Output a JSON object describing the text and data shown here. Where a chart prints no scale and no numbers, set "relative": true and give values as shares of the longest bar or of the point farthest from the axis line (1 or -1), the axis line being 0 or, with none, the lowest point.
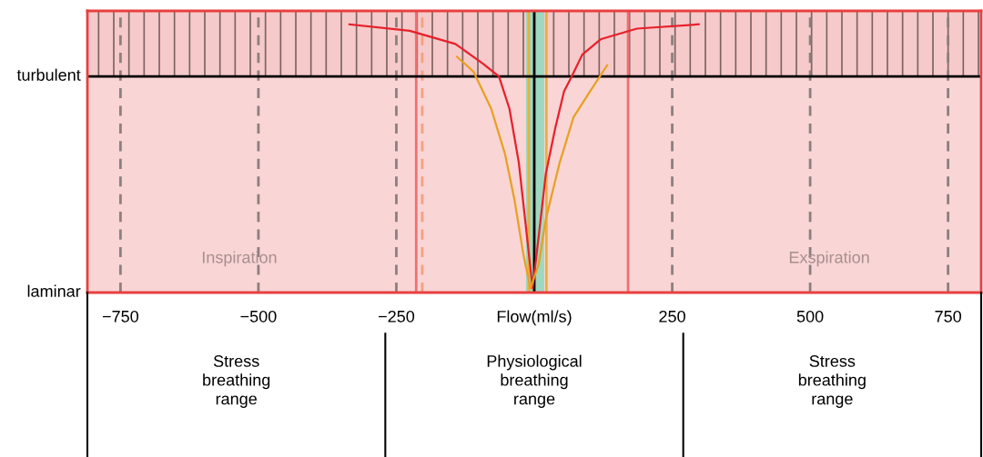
{
  "chart_data": {
    "type": "line",
    "xlabel": "Flow(ml/s)",
    "relative": true,
    "xlim": [
      -810,
      810
    ],
    "xticks": [
      {
        "value": -750,
        "label": "−750"
      },
      {
        "value": -500,
        "label": "−500"
      },
      {
        "value": -250,
        "label": "−250"
      },
      250,
      500,
      750
    ],
    "grid": false,
    "marker": "none",
    "line_style": "solid",
    "series": [
      {
        "color": "#e8202a",
        "x": [
          -335,
          -226,
          -143,
          -94,
          -64,
          -45,
          -28,
          -15,
          -3,
          8,
          21,
          38,
          54,
          68,
          87,
          120,
          186,
          298
        ],
        "values": [
          1.0,
          0.976,
          0.927,
          0.855,
          0.806,
          0.685,
          0.484,
          0.242,
          0.016,
          0.21,
          0.444,
          0.613,
          0.75,
          0.806,
          0.887,
          0.944,
          0.984,
          1.0
        ]
      },
      {
        "color": "#e8a020",
        "x": [
          -140,
          -110,
          -78,
          -53,
          -36,
          -20,
          -7,
          8,
          21,
          46,
          71,
          101,
          132
        ],
        "values": [
          0.879,
          0.823,
          0.685,
          0.516,
          0.347,
          0.145,
          0.016,
          0.105,
          0.274,
          0.484,
          0.653,
          0.75,
          0.847
        ]
      }
    ],
    "bands": [
      {
        "axis": "x",
        "from": -810,
        "to": 810,
        "color": "#f9d5d5"
      },
      {
        "axis": "y",
        "from": 0.806,
        "to": 1.05,
        "color": "#f6caca"
      },
      {
        "axis": "x",
        "from": -15,
        "to": 18,
        "color": "#9fd8c0"
      }
    ],
    "ref_lines": [
      {
        "axis": "x",
        "value": -750,
        "color": "#8c7f7f",
        "line_style": "dashed"
      },
      {
        "axis": "x",
        "value": -500,
        "color": "#8c7f7f",
        "line_style": "dashed"
      },
      {
        "axis": "x",
        "value": -250,
        "color": "#8c7f7f",
        "line_style": "dashed"
      },
      {
        "axis": "x",
        "value": 250,
        "color": "#8c7f7f",
        "line_style": "dashed"
      },
      {
        "axis": "x",
        "value": 500,
        "color": "#8c7f7f",
        "line_style": "dashed"
      },
      {
        "axis": "x",
        "value": 750,
        "color": "#8c7f7f",
        "line_style": "dashed"
      },
      {
        "axis": "x",
        "value": -214,
        "color": "#f07070",
        "line_style": "solid"
      },
      {
        "axis": "x",
        "value": 170,
        "color": "#f07070",
        "line_style": "solid"
      },
      {
        "axis": "x",
        "value": -203,
        "color": "#f5a080",
        "line_style": "dashed"
      },
      {
        "axis": "x",
        "value": -10,
        "color": "#e8b040",
        "line_style": "solid"
      },
      {
        "axis": "x",
        "value": 22,
        "color": "#e8b040",
        "line_style": "solid"
      },
      {
        "axis": "x",
        "value": 0,
        "color": "#000000",
        "line_style": "solid"
      },
      {
        "axis": "y",
        "value": 0.806,
        "color": "#000000",
        "line_style": "solid",
        "label": "turbulent"
      }
    ],
    "annotations": [
      "laminar",
      "Inspiration",
      "Exspiration",
      "Stress\nbreathing\nrange",
      "Physiological\nbreathing\nrange",
      "Stress\nbreathing\nrange"
    ]
  }
}
